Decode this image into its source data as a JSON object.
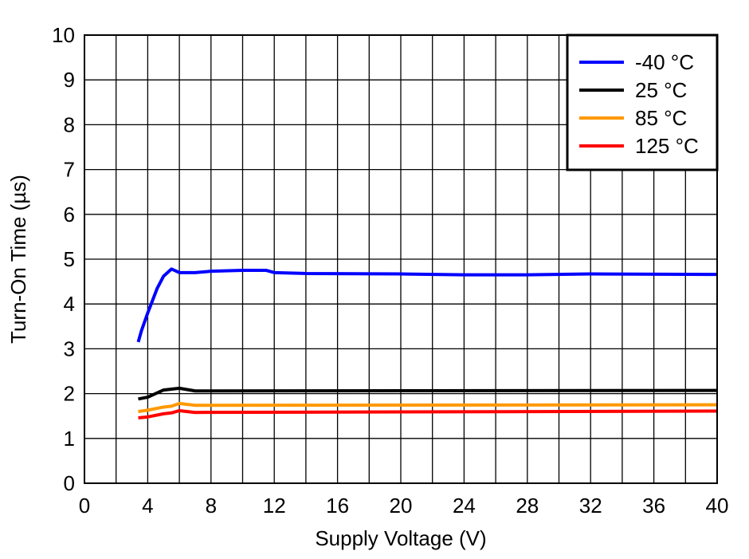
{
  "chart_data": {
    "type": "line",
    "title": "",
    "xlabel": "Supply Voltage (V)",
    "ylabel": "Turn-On Time (µs)",
    "xlim": [
      0,
      40
    ],
    "ylim": [
      0,
      10
    ],
    "xticks": [
      0,
      4,
      8,
      12,
      16,
      20,
      24,
      28,
      32,
      36,
      40
    ],
    "yticks": [
      0,
      1,
      2,
      3,
      4,
      5,
      6,
      7,
      8,
      9,
      10
    ],
    "grid": true,
    "legend_position": "top-right",
    "series": [
      {
        "name": "-40 °C",
        "color": "#0000ff",
        "x": [
          3.4,
          3.6,
          4,
          4.6,
          5,
          5.5,
          6,
          7,
          8,
          10,
          11.5,
          12,
          14,
          20,
          24,
          28,
          32,
          40
        ],
        "y": [
          3.15,
          3.4,
          3.8,
          4.35,
          4.62,
          4.78,
          4.7,
          4.7,
          4.73,
          4.75,
          4.75,
          4.7,
          4.68,
          4.67,
          4.65,
          4.65,
          4.67,
          4.66
        ]
      },
      {
        "name": "25 °C",
        "color": "#000000",
        "x": [
          3.4,
          4,
          5,
          6,
          7,
          8,
          40
        ],
        "y": [
          1.88,
          1.92,
          2.08,
          2.12,
          2.06,
          2.06,
          2.07
        ]
      },
      {
        "name": "85 °C",
        "color": "#ff9900",
        "x": [
          3.4,
          4,
          5,
          5.5,
          6,
          7,
          40
        ],
        "y": [
          1.6,
          1.63,
          1.7,
          1.72,
          1.78,
          1.74,
          1.75
        ]
      },
      {
        "name": "125 °C",
        "color": "#ff0000",
        "x": [
          3.4,
          4,
          5,
          5.5,
          6,
          7,
          40
        ],
        "y": [
          1.46,
          1.48,
          1.55,
          1.57,
          1.62,
          1.58,
          1.61
        ]
      }
    ]
  }
}
